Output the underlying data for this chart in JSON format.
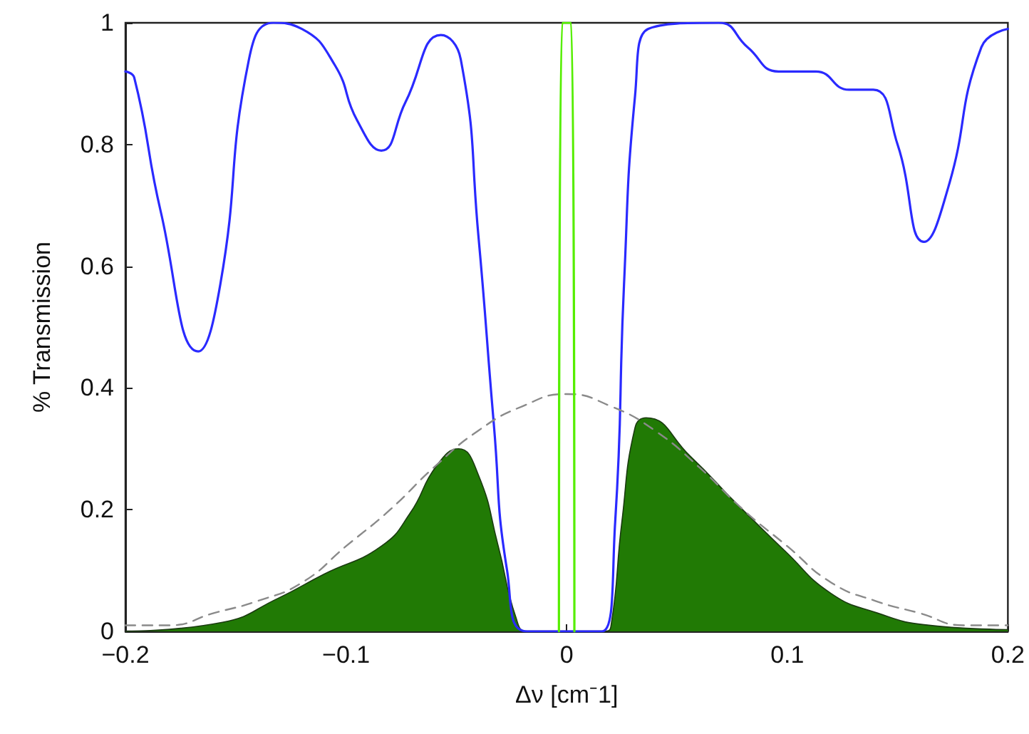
{
  "chart_data": {
    "type": "line",
    "xlabel": "Δν [cm⁻1]",
    "ylabel": "% Transmission",
    "grid": false,
    "marker": "none",
    "xlim": [
      -0.2,
      0.2
    ],
    "xticks": [
      {
        "value": -0.2,
        "label": "−0.2"
      },
      {
        "value": -0.1,
        "label": "−0.1"
      },
      0,
      0.1,
      0.2
    ],
    "ylim": [
      0,
      1
    ],
    "yticks": [
      0,
      0.2,
      0.4,
      0.6,
      0.8,
      1
    ],
    "series": [
      {
        "type": "area",
        "color": "#217a05",
        "x": [
          -0.2,
          -0.156,
          -0.131,
          -0.11,
          -0.084,
          -0.071,
          -0.059,
          -0.049,
          -0.04,
          -0.031,
          -0.023,
          -0.018,
          0.017,
          0.02,
          0.025,
          0.031,
          0.036,
          0.056,
          0.077,
          0.099,
          0.12,
          0.141,
          0.162,
          0.2
        ],
        "values": [
          0,
          0.015,
          0.054,
          0.094,
          0.14,
          0.194,
          0.272,
          0.3,
          0.257,
          0.14,
          0.023,
          0,
          0,
          0.007,
          0.179,
          0.335,
          0.351,
          0.288,
          0.21,
          0.132,
          0.062,
          0.03,
          0.011,
          0.003
        ]
      },
      {
        "type": "line",
        "color": "#2a2aff",
        "line_style": "solid",
        "x": [
          -0.2,
          -0.196,
          -0.184,
          -0.167,
          -0.157,
          -0.144,
          -0.133,
          -0.12,
          -0.105,
          -0.095,
          -0.084,
          -0.073,
          -0.057,
          -0.048,
          -0.04,
          -0.033,
          -0.027,
          -0.018,
          0.016,
          0.022,
          0.026,
          0.031,
          0.037,
          0.069,
          0.082,
          0.096,
          0.113,
          0.128,
          0.139,
          0.15,
          0.162,
          0.173,
          0.188,
          0.2
        ],
        "values": [
          0.92,
          0.91,
          0.69,
          0.46,
          0.57,
          0.94,
          1.0,
          0.99,
          0.93,
          0.84,
          0.79,
          0.87,
          0.98,
          0.94,
          0.65,
          0.34,
          0.1,
          0,
          0,
          0.18,
          0.57,
          0.88,
          0.99,
          1.0,
          0.96,
          0.92,
          0.92,
          0.89,
          0.89,
          0.8,
          0.64,
          0.73,
          0.96,
          0.99
        ]
      },
      {
        "type": "line",
        "color": "#8a8a8a",
        "line_style": "dashed",
        "x": [
          -0.2,
          -0.18,
          -0.16,
          -0.14,
          -0.12,
          -0.1,
          -0.08,
          -0.06,
          -0.04,
          -0.02,
          0,
          0.02,
          0.04,
          0.06,
          0.08,
          0.1,
          0.12,
          0.14,
          0.16,
          0.18,
          0.2
        ],
        "values": [
          0.01,
          0.01,
          0.03,
          0.05,
          0.08,
          0.14,
          0.2,
          0.27,
          0.33,
          0.37,
          0.39,
          0.37,
          0.33,
          0.27,
          0.2,
          0.14,
          0.08,
          0.05,
          0.03,
          0.01,
          0.01
        ]
      },
      {
        "type": "line",
        "color": "#55ee00",
        "line_style": "solid",
        "x": [
          -0.0035,
          -0.002,
          0.002,
          0.0035
        ],
        "values": [
          0,
          1,
          1,
          0
        ]
      }
    ]
  }
}
